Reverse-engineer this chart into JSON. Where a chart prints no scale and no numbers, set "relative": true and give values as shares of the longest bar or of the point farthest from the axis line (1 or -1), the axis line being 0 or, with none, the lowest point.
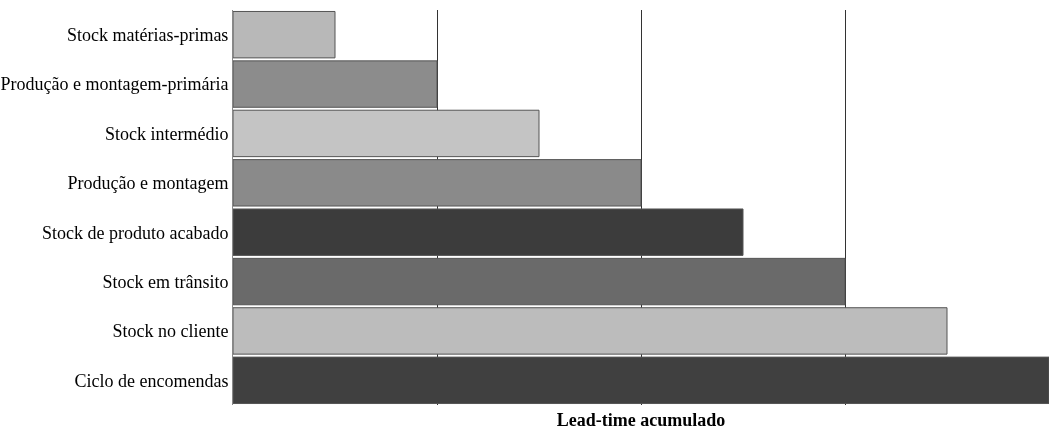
{
  "chart_data": {
    "type": "bar",
    "orientation": "horizontal",
    "relative": true,
    "xlabel": "Lead-time acumulado",
    "categories": [
      "Stock matérias-primas",
      "Produção e montagem-primária",
      "Stock intermédio",
      "Produção e montagem",
      "Stock de produto acabado",
      "Stock em trânsito",
      "Stock no cliente",
      "Ciclo de encomendas"
    ],
    "values": [
      0.125,
      0.25,
      0.375,
      0.5,
      0.625,
      0.75,
      0.875,
      1
    ],
    "colors": [
      "#b8b8b8",
      "#8c8c8c",
      "#c4c4c4",
      "#8a8a8a",
      "#3c3c3c",
      "#6a6a6a",
      "#bcbcbc",
      "#404040"
    ],
    "grid": "x"
  }
}
